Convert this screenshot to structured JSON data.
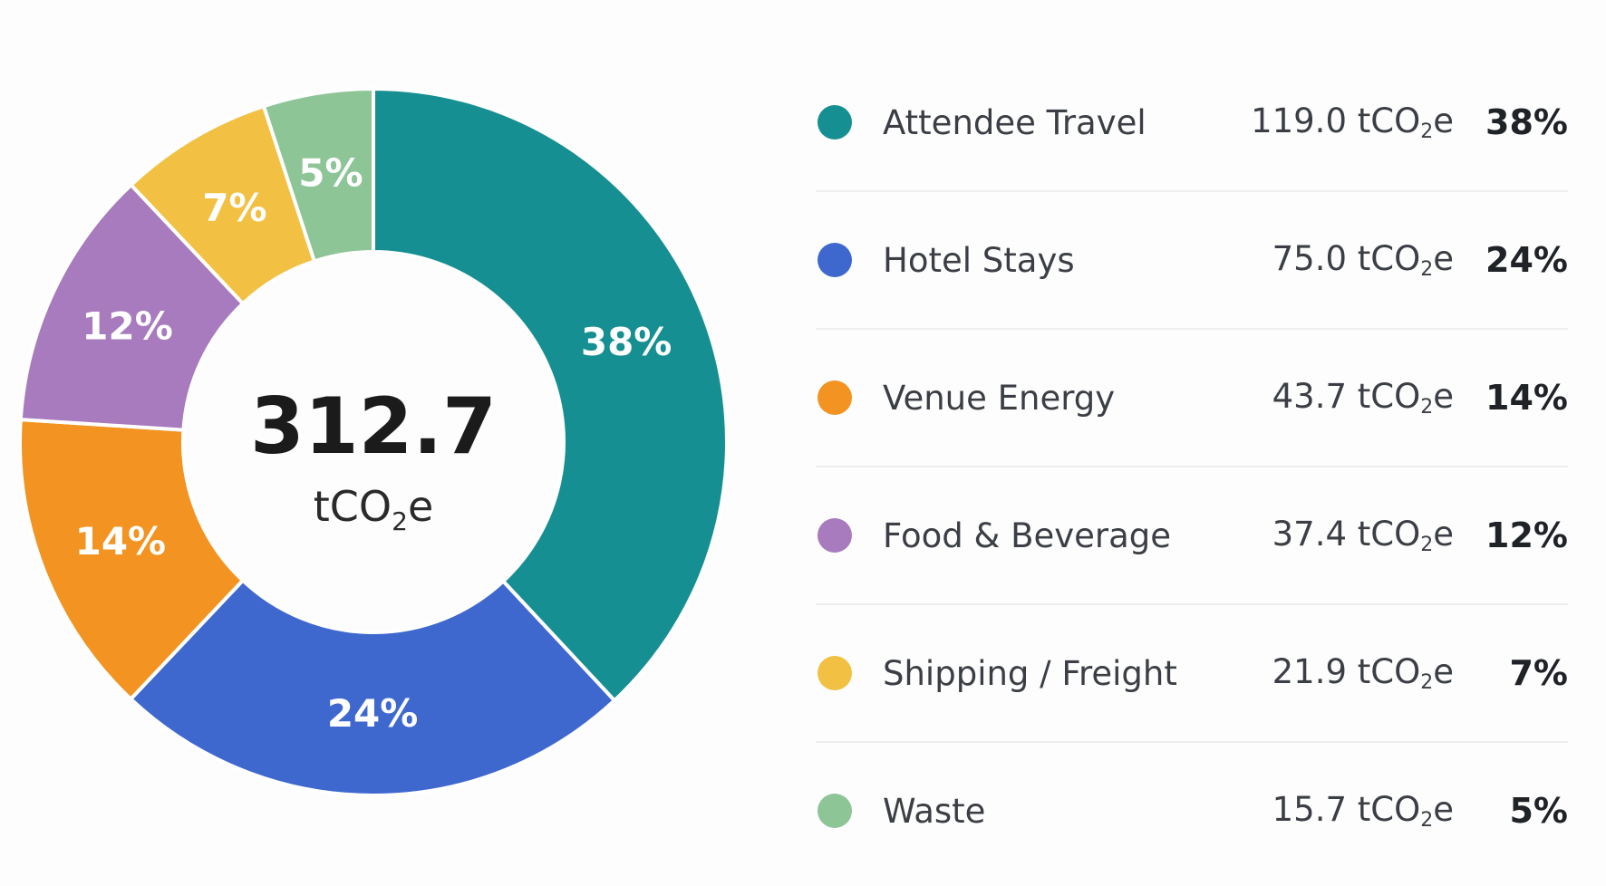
{
  "chart_data": {
    "type": "pie",
    "variant": "donut",
    "center": {
      "value": "312.7",
      "unit_prefix": "tCO",
      "unit_sub": "2",
      "unit_suffix": "e"
    },
    "slices": [
      {
        "name": "Attendee Travel",
        "value": 119.0,
        "value_label": "119.0",
        "percent_label": "38%",
        "color": "#168f92"
      },
      {
        "name": "Hotel Stays",
        "value": 75.0,
        "value_label": "75.0",
        "percent_label": "24%",
        "color": "#3f68cf"
      },
      {
        "name": "Venue Energy",
        "value": 43.7,
        "value_label": "43.7",
        "percent_label": "14%",
        "color": "#f29322"
      },
      {
        "name": "Food & Beverage",
        "value": 37.4,
        "value_label": "37.4",
        "percent_label": "12%",
        "color": "#a77bbd"
      },
      {
        "name": "Shipping / Freight",
        "value": 21.9,
        "value_label": "21.9",
        "percent_label": "7%",
        "color": "#f2c143"
      },
      {
        "name": "Waste",
        "value": 15.7,
        "value_label": "15.7",
        "percent_label": "5%",
        "color": "#8dc597"
      }
    ],
    "unit": {
      "prefix": "tCO",
      "sub": "2",
      "suffix": "e"
    },
    "legend_position": "right"
  }
}
